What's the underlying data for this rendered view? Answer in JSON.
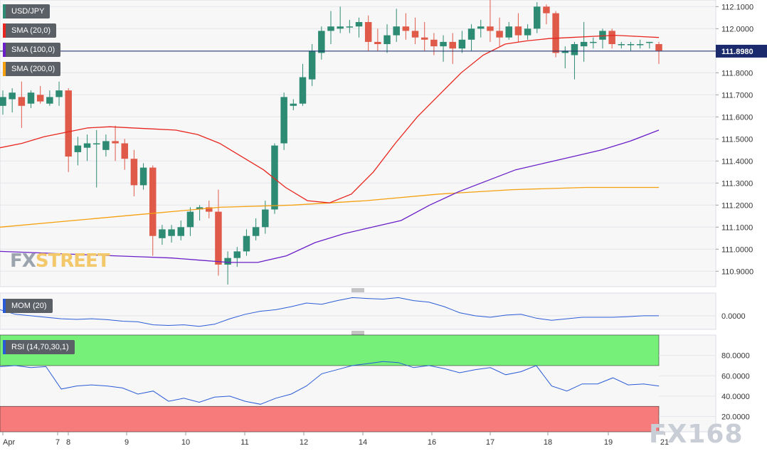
{
  "chart_data": [
    {
      "type": "candlestick",
      "symbol": "USD/JPY",
      "last_price": "111.8980",
      "ylim": [
        110.83,
        112.13
      ],
      "y_ticks": [
        "112.1000",
        "112.0000",
        "111.9000",
        "111.8000",
        "111.7000",
        "111.6000",
        "111.5000",
        "111.4000",
        "111.3000",
        "111.2000",
        "111.1000",
        "111.0000",
        "110.9000"
      ],
      "x_ticks": [
        "Apr",
        "7",
        "8",
        "9",
        "10",
        "11",
        "12",
        "14",
        "16",
        "17",
        "18",
        "19",
        "21"
      ],
      "legend": [
        {
          "label": "USD/JPY",
          "color": "#2e8b73"
        },
        {
          "label": "SMA (20,0)",
          "color": "#e8261f"
        },
        {
          "label": "SMA (100,0)",
          "color": "#6a1fc8"
        },
        {
          "label": "SMA (200,0)",
          "color": "#f5a00f"
        }
      ],
      "candles": [
        [
          111.65,
          111.69,
          111.61,
          111.72
        ],
        [
          111.68,
          111.71,
          111.62,
          111.73
        ],
        [
          111.69,
          111.65,
          111.55,
          111.76
        ],
        [
          111.66,
          111.71,
          111.64,
          111.72
        ],
        [
          111.7,
          111.67,
          111.66,
          111.74
        ],
        [
          111.66,
          111.69,
          111.65,
          111.72
        ],
        [
          111.69,
          111.72,
          111.65,
          111.76
        ],
        [
          111.72,
          111.42,
          111.35,
          111.73
        ],
        [
          111.44,
          111.47,
          111.38,
          111.51
        ],
        [
          111.46,
          111.48,
          111.4,
          111.52
        ],
        [
          111.48,
          111.48,
          111.28,
          111.54
        ],
        [
          111.45,
          111.49,
          111.42,
          111.52
        ],
        [
          111.49,
          111.48,
          111.4,
          111.56
        ],
        [
          111.48,
          111.41,
          111.36,
          111.5
        ],
        [
          111.41,
          111.29,
          111.24,
          111.45
        ],
        [
          111.29,
          111.37,
          111.27,
          111.39
        ],
        [
          111.37,
          111.06,
          110.97,
          111.38
        ],
        [
          111.05,
          111.09,
          111.02,
          111.11
        ],
        [
          111.06,
          111.09,
          111.03,
          111.11
        ],
        [
          111.06,
          111.1,
          111.04,
          111.13
        ],
        [
          111.1,
          111.17,
          111.06,
          111.19
        ],
        [
          111.18,
          111.19,
          111.13,
          111.2
        ],
        [
          111.19,
          111.17,
          111.14,
          111.22
        ],
        [
          111.17,
          110.93,
          110.88,
          111.27
        ],
        [
          110.93,
          110.96,
          110.84,
          110.99
        ],
        [
          110.96,
          110.99,
          110.92,
          111.01
        ],
        [
          110.99,
          111.06,
          110.97,
          111.09
        ],
        [
          111.06,
          111.1,
          111.04,
          111.14
        ],
        [
          111.1,
          111.18,
          111.07,
          111.22
        ],
        [
          111.18,
          111.47,
          111.16,
          111.48
        ],
        [
          111.48,
          111.69,
          111.45,
          111.71
        ],
        [
          111.65,
          111.66,
          111.63,
          111.68
        ],
        [
          111.66,
          111.78,
          111.65,
          111.84
        ],
        [
          111.77,
          111.9,
          111.74,
          111.93
        ],
        [
          111.89,
          111.99,
          111.86,
          112.01
        ],
        [
          111.99,
          112.01,
          111.93,
          112.08
        ],
        [
          112.0,
          112.01,
          111.98,
          112.1
        ],
        [
          112.01,
          112.01,
          111.98,
          112.04
        ],
        [
          112.01,
          112.03,
          111.96,
          112.05
        ],
        [
          112.03,
          111.94,
          111.9,
          112.06
        ],
        [
          111.94,
          111.93,
          111.9,
          112.0
        ],
        [
          111.93,
          111.97,
          111.89,
          112.02
        ],
        [
          111.97,
          112.01,
          111.94,
          112.09
        ],
        [
          112.01,
          111.99,
          111.95,
          112.07
        ],
        [
          111.99,
          111.96,
          111.93,
          112.05
        ],
        [
          111.96,
          111.95,
          111.9,
          112.03
        ],
        [
          111.95,
          111.92,
          111.88,
          111.98
        ],
        [
          111.92,
          111.94,
          111.85,
          111.97
        ],
        [
          111.94,
          111.91,
          111.84,
          111.98
        ],
        [
          111.91,
          111.95,
          111.89,
          111.99
        ],
        [
          111.95,
          112.0,
          111.9,
          112.02
        ],
        [
          112.0,
          112.01,
          111.96,
          112.04
        ],
        [
          112.01,
          111.99,
          111.94,
          112.13
        ],
        [
          111.99,
          111.96,
          111.92,
          112.05
        ],
        [
          111.96,
          112.01,
          111.95,
          112.03
        ],
        [
          112.01,
          111.97,
          111.94,
          112.07
        ],
        [
          111.97,
          112.0,
          111.95,
          112.02
        ],
        [
          112.0,
          112.1,
          111.98,
          112.12
        ],
        [
          112.1,
          112.07,
          112.02,
          112.11
        ],
        [
          112.07,
          111.89,
          111.87,
          112.08
        ],
        [
          111.89,
          111.9,
          111.82,
          111.92
        ],
        [
          111.88,
          111.93,
          111.77,
          111.94
        ],
        [
          111.92,
          111.94,
          111.85,
          112.03
        ],
        [
          111.94,
          111.94,
          111.91,
          111.96
        ],
        [
          111.95,
          111.99,
          111.91,
          112.0
        ],
        [
          111.99,
          111.93,
          111.91,
          112.0
        ],
        [
          111.93,
          111.93,
          111.91,
          111.94
        ],
        [
          111.93,
          111.93,
          111.9,
          111.94
        ],
        [
          111.93,
          111.93,
          111.91,
          111.95
        ],
        [
          111.94,
          111.94,
          111.91,
          111.94
        ],
        [
          111.93,
          111.9,
          111.84,
          111.94
        ]
      ],
      "sma_20": [
        111.46,
        111.48,
        111.51,
        111.53,
        111.55,
        111.555,
        111.55,
        111.545,
        111.54,
        111.52,
        111.48,
        111.42,
        111.36,
        111.28,
        111.22,
        111.21,
        111.25,
        111.35,
        111.48,
        111.6,
        111.7,
        111.8,
        111.88,
        111.93,
        111.945,
        111.955,
        111.96,
        111.965,
        111.97,
        111.965,
        111.96
      ],
      "sma_100": [
        110.99,
        110.985,
        110.98,
        110.975,
        110.97,
        110.965,
        110.96,
        110.95,
        110.94,
        110.94,
        110.97,
        111.03,
        111.07,
        111.1,
        111.13,
        111.2,
        111.26,
        111.31,
        111.36,
        111.39,
        111.42,
        111.45,
        111.49,
        111.54
      ],
      "sma_200": [
        111.1,
        111.13,
        111.16,
        111.19,
        111.2,
        111.22,
        111.25,
        111.27,
        111.28,
        111.28
      ],
      "mom_label": "MOM (20)",
      "mom_ticks": [
        "0.0000"
      ],
      "mom": [
        0.02,
        0.005,
        0.0,
        -0.005,
        -0.01,
        -0.012,
        -0.01,
        -0.013,
        -0.018,
        -0.02,
        -0.03,
        -0.032,
        -0.03,
        -0.035,
        -0.028,
        -0.01,
        0.005,
        0.015,
        0.02,
        0.03,
        0.042,
        0.038,
        0.05,
        0.06,
        0.057,
        0.055,
        0.06,
        0.05,
        0.045,
        0.03,
        0.01,
        0.0,
        -0.005,
        0.002,
        0.005,
        -0.008,
        -0.015,
        -0.01,
        -0.005,
        -0.005,
        -0.005,
        -0.003,
        0.0,
        0.0
      ],
      "rsi_label": "RSI (14,70,30,1)",
      "rsi_ticks": [
        "80.0000",
        "60.0000",
        "40.0000",
        "20.0000"
      ],
      "rsi": [
        69,
        70,
        68,
        69,
        47,
        50,
        51,
        50,
        48,
        42,
        45,
        35,
        38,
        34,
        39,
        40,
        35,
        32,
        38,
        42,
        50,
        62,
        66,
        70,
        72,
        74,
        73,
        68,
        70,
        67,
        63,
        66,
        68,
        61,
        64,
        70,
        50,
        45,
        52,
        52,
        58,
        51,
        52,
        50
      ],
      "rsi_overbought": 70,
      "rsi_oversold": 30,
      "watermarks": [
        "FXSTREET",
        "FX168"
      ]
    }
  ]
}
